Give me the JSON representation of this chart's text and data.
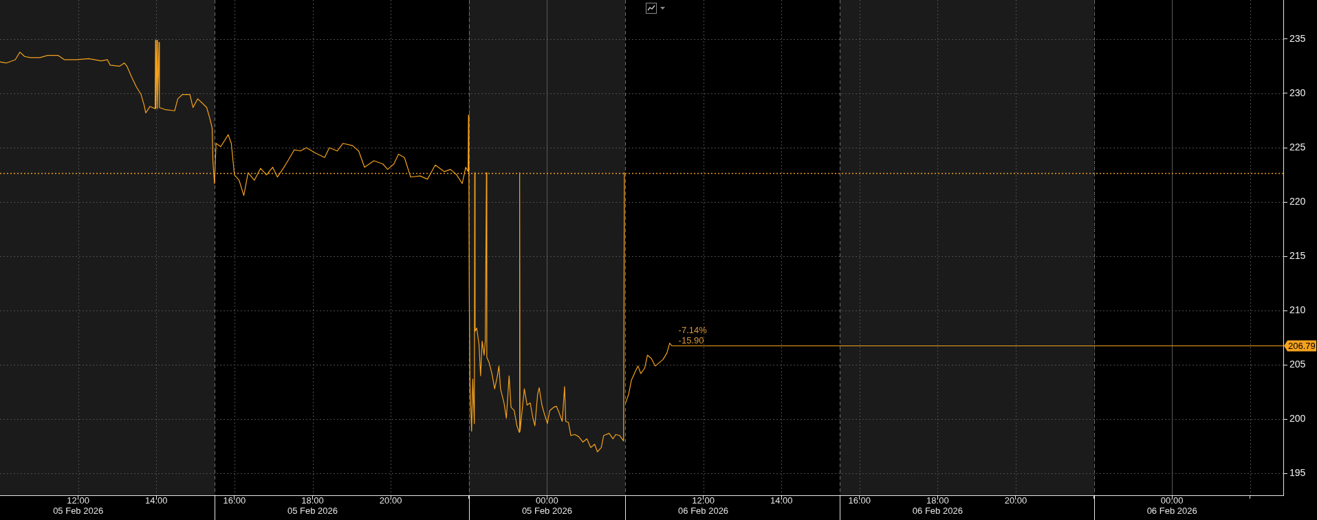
{
  "chart_data": [
    {
      "type": "line",
      "x": [
        10.0,
        10.16,
        10.39,
        10.51,
        10.63,
        10.78,
        11.02,
        11.22,
        11.49,
        11.65,
        11.96,
        12.27,
        12.59,
        12.75,
        12.82,
        13.06,
        13.18,
        13.25,
        13.37,
        13.49,
        13.61,
        13.69,
        13.73,
        13.84,
        13.97,
        13.98,
        13.99,
        14.02,
        14.03,
        14.07,
        14.08,
        14.24,
        14.47,
        14.55,
        14.67,
        14.86,
        14.94,
        15.06,
        15.18,
        15.29,
        15.37,
        15.43,
        15.45,
        15.49,
        15.53,
        15.65,
        15.84,
        15.92,
        16.0,
        16.12,
        16.24,
        16.35,
        16.51,
        16.67,
        16.82,
        16.98,
        17.1,
        17.25,
        17.37,
        17.53,
        17.69,
        17.84,
        18.08,
        18.31,
        18.43,
        18.63,
        18.78,
        19.02,
        19.18,
        19.33,
        19.57,
        19.8,
        19.92,
        20.08,
        20.2,
        20.35,
        20.51,
        20.75,
        20.94,
        21.14,
        21.37,
        21.53,
        21.69,
        21.83,
        21.92,
        21.98,
        21.99,
        22.0,
        22.01,
        22.03,
        22.07,
        22.1,
        22.14,
        22.15,
        22.16,
        22.2,
        22.26,
        22.3,
        22.34,
        22.39,
        22.42,
        22.45,
        22.46,
        22.52,
        22.59,
        22.66,
        22.73,
        22.77,
        22.81,
        22.9,
        22.96,
        23.03,
        23.08,
        23.16,
        23.23,
        23.29,
        23.3,
        23.31,
        23.42,
        23.49,
        23.57,
        23.64,
        23.69,
        23.76,
        23.8,
        23.87,
        23.94,
        24.01,
        24.07,
        24.17,
        24.24,
        24.31,
        24.39,
        24.45,
        24.48,
        24.55,
        24.61,
        24.71,
        24.81,
        24.92,
        25.02,
        25.12,
        25.22,
        25.29,
        25.39,
        25.45,
        25.59,
        25.69,
        25.76,
        25.86,
        25.96,
        25.98
      ],
      "series": [
        {
          "color": "#f5a21e",
          "values": [
            232.9,
            232.8,
            233.1,
            233.8,
            233.4,
            233.3,
            233.3,
            233.5,
            233.5,
            233.1,
            233.1,
            233.2,
            233.0,
            233.1,
            232.6,
            232.5,
            232.8,
            232.5,
            231.5,
            230.6,
            229.9,
            228.9,
            228.2,
            228.8,
            228.6,
            234.9,
            228.6,
            234.9,
            228.6,
            234.7,
            228.7,
            228.5,
            228.4,
            229.5,
            229.9,
            229.9,
            228.7,
            229.5,
            229.1,
            228.7,
            227.7,
            226.8,
            223.7,
            221.7,
            225.4,
            225.1,
            226.2,
            225.4,
            222.5,
            222.0,
            220.6,
            222.7,
            222.0,
            223.1,
            222.5,
            223.2,
            222.3,
            223.1,
            223.8,
            224.8,
            224.7,
            225.0,
            224.5,
            224.1,
            225.0,
            224.7,
            225.4,
            225.2,
            224.7,
            223.2,
            223.8,
            223.5,
            223.0,
            223.5,
            224.4,
            224.1,
            222.3,
            222.4,
            222.1,
            223.4,
            222.8,
            223.0,
            222.5,
            221.7,
            223.2,
            222.8,
            228.0,
            222.7,
            211.5,
            203.2,
            198.9,
            203.7,
            199.6,
            222.7,
            208.1,
            208.4,
            206.9,
            204.0,
            207.2,
            205.9,
            207.2,
            222.7,
            205.7,
            205.2,
            204.2,
            202.8,
            204.0,
            204.9,
            202.8,
            201.5,
            200.1,
            204.0,
            201.1,
            200.8,
            199.4,
            198.8,
            222.7,
            198.9,
            202.8,
            201.3,
            201.5,
            200.1,
            199.4,
            202.3,
            202.9,
            201.3,
            200.4,
            199.6,
            200.8,
            201.1,
            201.2,
            200.6,
            199.8,
            203.0,
            199.8,
            199.7,
            198.5,
            198.6,
            198.4,
            197.9,
            198.2,
            197.4,
            197.7,
            197.0,
            197.4,
            198.5,
            198.7,
            198.2,
            198.6,
            198.5,
            198.0,
            222.7
          ]
        }
      ],
      "xlim": [
        10,
        26
      ],
      "xticks": [
        {
          "value": 12,
          "label": "12:00\n05 Feb 2026"
        },
        {
          "value": 14,
          "label": "14:00"
        },
        {
          "value": 16,
          "label": "16:00"
        },
        {
          "value": 18,
          "label": "18:00\n05 Feb 2026"
        },
        {
          "value": 20,
          "label": "20:00"
        },
        {
          "value": 22,
          "label": null
        },
        {
          "value": 24,
          "label": "00:00\n05 Feb 2026"
        }
      ],
      "ylim": [
        193,
        238.6
      ],
      "yticks": [
        195,
        200,
        205,
        210,
        215,
        220,
        225,
        230,
        235
      ],
      "tick_labels": "x",
      "grid": true,
      "bands": [
        {
          "axis": "x",
          "from": 10,
          "to": 15.5,
          "color": "#1b1b1b"
        },
        {
          "axis": "x",
          "from": 22,
          "to": 26,
          "color": "#1b1b1b"
        }
      ],
      "ref_lines": [
        {
          "axis": "x",
          "value": 15.5,
          "color": "#707070",
          "line_style": "dashed"
        },
        {
          "axis": "x",
          "value": 22,
          "color": "#707070",
          "line_style": "dashed"
        },
        {
          "axis": "x",
          "value": 24,
          "color": "#5a5a5a",
          "line_style": "solid"
        },
        {
          "axis": "y",
          "value": 222.69,
          "color": "#f5a21e",
          "line_style": "dotted"
        }
      ]
    },
    {
      "type": "line",
      "x": [
        10.01,
        10.09,
        10.16,
        10.26,
        10.33,
        10.4,
        10.5,
        10.57,
        10.67,
        10.77,
        10.87,
        10.97,
        11.07,
        11.14,
        11.19
      ],
      "series": [
        {
          "color": "#f5a21e",
          "values": [
            201.5,
            202.3,
            203.6,
            204.4,
            204.9,
            204.2,
            204.7,
            205.9,
            205.6,
            204.9,
            205.2,
            205.5,
            206.1,
            207.0,
            206.79
          ]
        }
      ],
      "xlim": [
        10,
        26.85
      ],
      "xticks": [
        {
          "value": 12,
          "label": "12:00\n06 Feb 2026"
        },
        {
          "value": 14,
          "label": "14:00"
        },
        {
          "value": 16,
          "label": "16:00"
        },
        {
          "value": 18,
          "label": "18:00\n06 Feb 2026"
        },
        {
          "value": 20,
          "label": "20:00"
        },
        {
          "value": 22,
          "label": null
        },
        {
          "value": 24,
          "label": "00:00\n06 Feb 2026"
        },
        {
          "value": 26,
          "label": null
        }
      ],
      "ylim": [
        193,
        238.6
      ],
      "yticks": [
        195,
        200,
        205,
        210,
        215,
        220,
        225,
        230,
        235
      ],
      "grid": true,
      "bands": [
        {
          "axis": "x",
          "from": 15.5,
          "to": 22,
          "color": "#1b1b1b"
        }
      ],
      "ref_lines": [
        {
          "axis": "x",
          "value": 10,
          "color": "#707070",
          "line_style": "dashed"
        },
        {
          "axis": "x",
          "value": 15.5,
          "color": "#707070",
          "line_style": "dashed"
        },
        {
          "axis": "x",
          "value": 22,
          "color": "#707070",
          "line_style": "dashed"
        },
        {
          "axis": "x",
          "value": 24,
          "color": "#5a5a5a",
          "line_style": "solid"
        },
        {
          "axis": "y",
          "value": 222.69,
          "color": "#f5a21e",
          "line_style": "dotted"
        },
        {
          "axis": "y",
          "value": 206.79,
          "label": "206.79",
          "color": "#f5a21e",
          "line_style": "solid"
        }
      ],
      "annotations": [
        "-7.14%",
        "-15.90"
      ]
    }
  ]
}
